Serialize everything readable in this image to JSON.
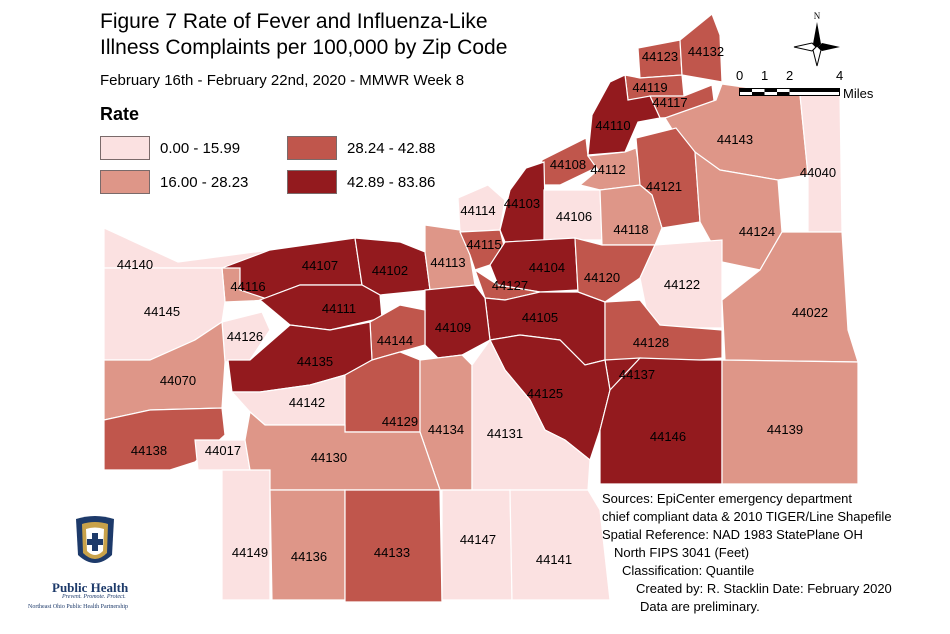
{
  "title_line1": "Figure 7 Rate of Fever and Influenza-Like",
  "title_line2": "Illness Complaints per 100,000 by Zip Code",
  "subtitle": "February 16th - February 22nd, 2020 - MMWR Week 8",
  "legend": {
    "title": "Rate",
    "items": [
      {
        "label": "0.00 - 15.99",
        "color": "#fbe1e1"
      },
      {
        "label": "16.00 - 28.23",
        "color": "#de9688"
      },
      {
        "label": "28.24 - 42.88",
        "color": "#c0564c"
      },
      {
        "label": "42.89 - 83.86",
        "color": "#931a1e"
      }
    ]
  },
  "north_label": "N",
  "scale": {
    "ticks": [
      "0",
      "1",
      "2",
      "4"
    ],
    "unit": "Miles"
  },
  "sources": [
    "Sources: EpiCenter emergency department",
    "chief compliant data & 2010 TIGER/Line Shapefile",
    "Spatial Reference: NAD 1983 StatePlane OH",
    "North FIPS 3041 (Feet)",
    "Classification: Quantile",
    "Created by: R. Stacklin  Date: February 2020",
    "Data are preliminary."
  ],
  "logo": {
    "title": "Public Health",
    "tagline": "Prevent. Promote. Protect.",
    "org": "Northeast Ohio Public Health Partnership"
  },
  "zips": [
    {
      "zip": "44123",
      "rate_class": 3
    },
    {
      "zip": "44132",
      "rate_class": 3
    },
    {
      "zip": "44119",
      "rate_class": 3
    },
    {
      "zip": "44117",
      "rate_class": 3
    },
    {
      "zip": "44110",
      "rate_class": 4
    },
    {
      "zip": "44143",
      "rate_class": 2
    },
    {
      "zip": "44108",
      "rate_class": 3
    },
    {
      "zip": "44112",
      "rate_class": 2
    },
    {
      "zip": "44121",
      "rate_class": 3
    },
    {
      "zip": "44040",
      "rate_class": 1
    },
    {
      "zip": "44114",
      "rate_class": 1
    },
    {
      "zip": "44103",
      "rate_class": 4
    },
    {
      "zip": "44106",
      "rate_class": 1
    },
    {
      "zip": "44118",
      "rate_class": 2
    },
    {
      "zip": "44124",
      "rate_class": 2
    },
    {
      "zip": "44140",
      "rate_class": 1
    },
    {
      "zip": "44107",
      "rate_class": 4
    },
    {
      "zip": "44102",
      "rate_class": 4
    },
    {
      "zip": "44113",
      "rate_class": 2
    },
    {
      "zip": "44115",
      "rate_class": 3
    },
    {
      "zip": "44104",
      "rate_class": 4
    },
    {
      "zip": "44120",
      "rate_class": 3
    },
    {
      "zip": "44116",
      "rate_class": 2
    },
    {
      "zip": "44127",
      "rate_class": 3
    },
    {
      "zip": "44122",
      "rate_class": 1
    },
    {
      "zip": "44145",
      "rate_class": 1
    },
    {
      "zip": "44111",
      "rate_class": 4
    },
    {
      "zip": "44105",
      "rate_class": 4
    },
    {
      "zip": "44022",
      "rate_class": 2
    },
    {
      "zip": "44126",
      "rate_class": 1
    },
    {
      "zip": "44109",
      "rate_class": 4
    },
    {
      "zip": "44144",
      "rate_class": 3
    },
    {
      "zip": "44128",
      "rate_class": 3
    },
    {
      "zip": "44135",
      "rate_class": 4
    },
    {
      "zip": "44137",
      "rate_class": 4
    },
    {
      "zip": "44070",
      "rate_class": 2
    },
    {
      "zip": "44125",
      "rate_class": 4
    },
    {
      "zip": "44142",
      "rate_class": 1
    },
    {
      "zip": "44129",
      "rate_class": 3
    },
    {
      "zip": "44134",
      "rate_class": 2
    },
    {
      "zip": "44131",
      "rate_class": 1
    },
    {
      "zip": "44146",
      "rate_class": 4
    },
    {
      "zip": "44139",
      "rate_class": 2
    },
    {
      "zip": "44138",
      "rate_class": 3
    },
    {
      "zip": "44017",
      "rate_class": 1
    },
    {
      "zip": "44130",
      "rate_class": 2
    },
    {
      "zip": "44149",
      "rate_class": 1
    },
    {
      "zip": "44136",
      "rate_class": 2
    },
    {
      "zip": "44133",
      "rate_class": 3
    },
    {
      "zip": "44147",
      "rate_class": 1
    },
    {
      "zip": "44141",
      "rate_class": 1
    }
  ]
}
